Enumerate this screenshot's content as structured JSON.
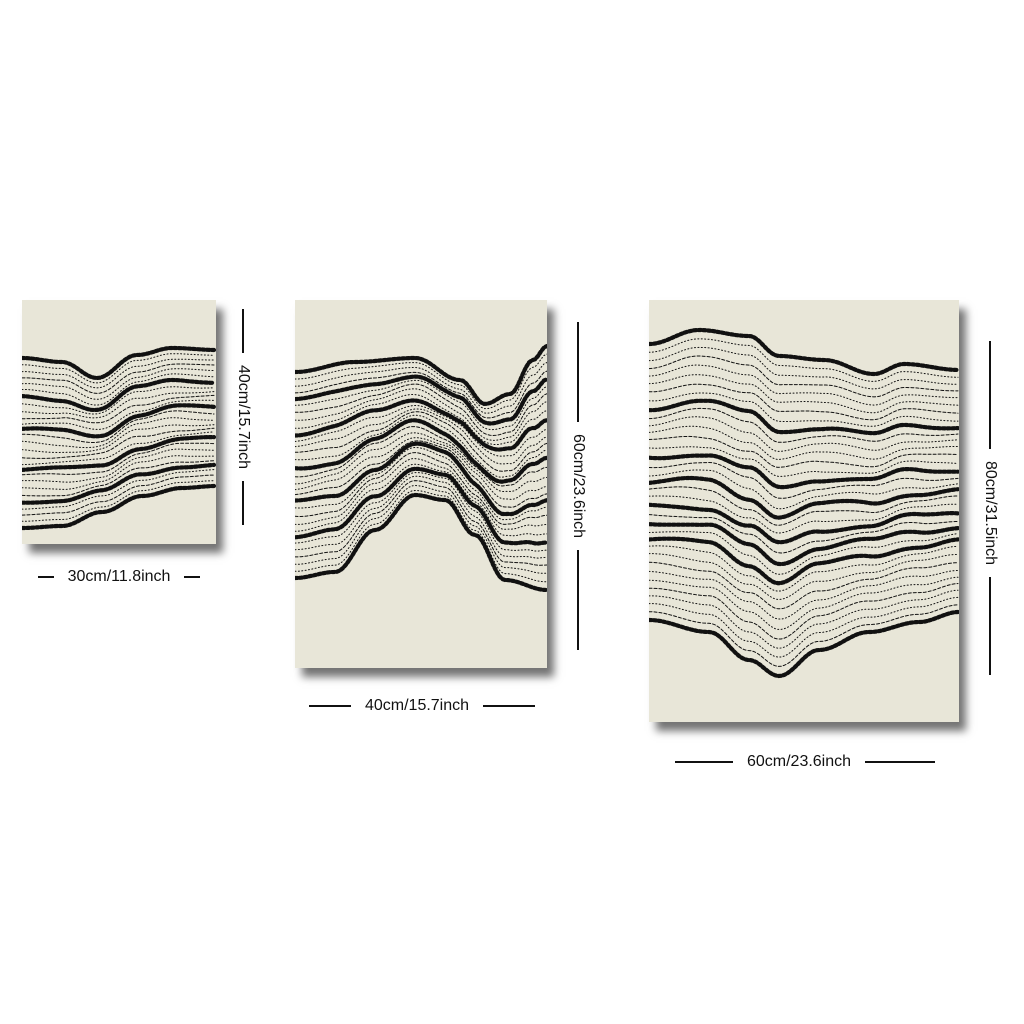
{
  "colors": {
    "canvas": "#e8e6d8",
    "ink": "#111111",
    "background": "#ffffff"
  },
  "panels": [
    {
      "id": "small",
      "width_label": "30cm/11.8inch",
      "height_label": "40cm/15.7inch"
    },
    {
      "id": "medium",
      "width_label": "40cm/15.7inch",
      "height_label": "60cm/23.6inch"
    },
    {
      "id": "large",
      "width_label": "60cm/23.6inch",
      "height_label": "80cm/31.5inch"
    }
  ]
}
